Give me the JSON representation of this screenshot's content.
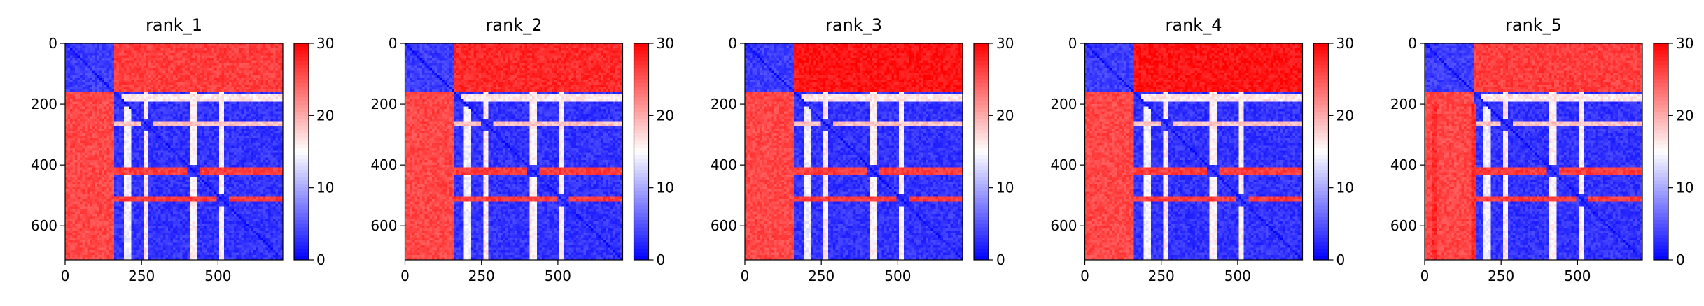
{
  "chart_data": [
    {
      "type": "heatmap",
      "title": "rank_1",
      "matrix_size": 712,
      "xlim": [
        0,
        712
      ],
      "ylim": [
        712,
        0
      ],
      "x_ticks": [
        0,
        250,
        500
      ],
      "y_ticks": [
        0,
        200,
        400,
        600
      ],
      "colorbar": {
        "range": [
          0,
          30
        ],
        "ticks": [
          0,
          10,
          20,
          30
        ],
        "colormap": "bwr"
      },
      "domain_boundaries": [
        160,
        265,
        420,
        515
      ],
      "linker_columns": [],
      "top_strip_level": 0.88
    },
    {
      "type": "heatmap",
      "title": "rank_2",
      "matrix_size": 712,
      "xlim": [
        0,
        712
      ],
      "ylim": [
        712,
        0
      ],
      "x_ticks": [
        0,
        250,
        500
      ],
      "y_ticks": [
        0,
        200,
        400,
        600
      ],
      "colorbar": {
        "range": [
          0,
          30
        ],
        "ticks": [
          0,
          10,
          20,
          30
        ],
        "colormap": "bwr"
      },
      "domain_boundaries": [
        160,
        265,
        420,
        515
      ],
      "linker_columns": [],
      "top_strip_level": 0.92
    },
    {
      "type": "heatmap",
      "title": "rank_3",
      "matrix_size": 712,
      "xlim": [
        0,
        712
      ],
      "ylim": [
        712,
        0
      ],
      "x_ticks": [
        0,
        250,
        500
      ],
      "y_ticks": [
        0,
        200,
        400,
        600
      ],
      "colorbar": {
        "range": [
          0,
          30
        ],
        "ticks": [
          0,
          10,
          20,
          30
        ],
        "colormap": "bwr"
      },
      "domain_boundaries": [
        160,
        265,
        420,
        515
      ],
      "linker_columns": [],
      "top_strip_level": 0.96
    },
    {
      "type": "heatmap",
      "title": "rank_4",
      "matrix_size": 712,
      "xlim": [
        0,
        712
      ],
      "ylim": [
        712,
        0
      ],
      "x_ticks": [
        0,
        250,
        500
      ],
      "y_ticks": [
        0,
        200,
        400,
        600
      ],
      "colorbar": {
        "range": [
          0,
          30
        ],
        "ticks": [
          0,
          10,
          20,
          30
        ],
        "colormap": "bwr"
      },
      "domain_boundaries": [
        160,
        265,
        420,
        515
      ],
      "linker_columns": [],
      "top_strip_level": 0.96
    },
    {
      "type": "heatmap",
      "title": "rank_5",
      "matrix_size": 712,
      "xlim": [
        0,
        712
      ],
      "ylim": [
        712,
        0
      ],
      "x_ticks": [
        0,
        250,
        500
      ],
      "y_ticks": [
        0,
        200,
        400,
        600
      ],
      "colorbar": {
        "range": [
          0,
          30
        ],
        "ticks": [
          0,
          10,
          20,
          30
        ],
        "colormap": "bwr"
      },
      "domain_boundaries": [
        160,
        265,
        420,
        515
      ],
      "linker_columns": [
        30,
        160
      ],
      "top_strip_level": 0.88
    }
  ],
  "colors": {
    "low": "#0000ff",
    "mid": "#ffffff",
    "high": "#ff0000",
    "axis": "#000000"
  }
}
